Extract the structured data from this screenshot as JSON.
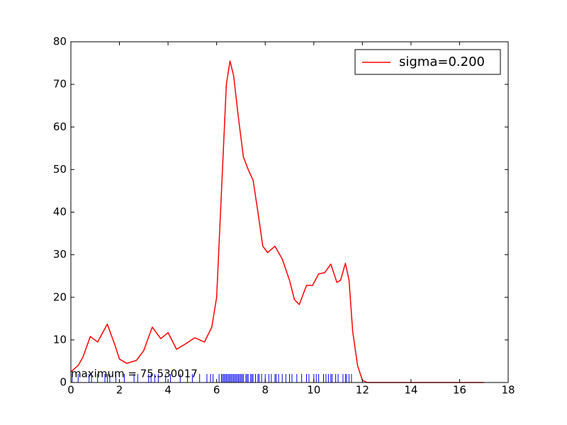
{
  "chart_data": {
    "type": "line",
    "annotation": "maximum = 75.530017",
    "xlim": [
      0,
      18
    ],
    "xticks": [
      0,
      2,
      4,
      6,
      8,
      10,
      12,
      14,
      16,
      18
    ],
    "ylim": [
      0,
      80
    ],
    "yticks": [
      0,
      10,
      20,
      30,
      40,
      50,
      60,
      70,
      80
    ],
    "legend": "upper right",
    "series": [
      {
        "name": "sigma=0.200",
        "color": "#ff0000",
        "x": [
          0,
          0.3,
          0.5,
          0.8,
          1.1,
          1.5,
          1.8,
          2.0,
          2.3,
          2.7,
          3.0,
          3.35,
          3.7,
          4.0,
          4.35,
          4.7,
          5.1,
          5.5,
          5.8,
          6.0,
          6.2,
          6.4,
          6.55,
          6.7,
          6.9,
          7.1,
          7.3,
          7.5,
          7.7,
          7.9,
          8.1,
          8.4,
          8.7,
          9.0,
          9.2,
          9.4,
          9.7,
          9.95,
          10.2,
          10.45,
          10.7,
          10.95,
          11.1,
          11.3,
          11.45,
          11.6,
          11.8,
          12.0,
          12.2,
          14,
          17
        ],
        "values": [
          2.5,
          4,
          6,
          10.8,
          9.5,
          13.7,
          9,
          5.5,
          4.5,
          5.2,
          7.5,
          13,
          10.3,
          11.7,
          7.8,
          9,
          10.5,
          9.5,
          13,
          20,
          45,
          70,
          75.5,
          72,
          62,
          53,
          50,
          47.5,
          40,
          32,
          30.5,
          32,
          29,
          24,
          19.5,
          18.3,
          22.8,
          22.8,
          25.5,
          25.8,
          27.8,
          23.5,
          24,
          28,
          24,
          12,
          4,
          0.5,
          0,
          0,
          0
        ]
      }
    ],
    "rug": {
      "color": "#0000ff",
      "height": 2,
      "x": [
        0.05,
        0.3,
        0.75,
        0.85,
        1.1,
        1.4,
        1.5,
        1.6,
        1.85,
        2.2,
        2.6,
        2.75,
        3.2,
        3.3,
        3.45,
        3.6,
        3.9,
        4.1,
        4.5,
        4.8,
        5.0,
        5.3,
        5.6,
        5.75,
        5.85,
        6.1,
        6.2,
        6.25,
        6.3,
        6.35,
        6.4,
        6.45,
        6.5,
        6.55,
        6.6,
        6.65,
        6.7,
        6.75,
        6.8,
        6.85,
        6.9,
        6.95,
        7.0,
        7.05,
        7.1,
        7.2,
        7.25,
        7.3,
        7.4,
        7.45,
        7.5,
        7.6,
        7.7,
        7.75,
        7.85,
        8.0,
        8.15,
        8.25,
        8.4,
        8.45,
        8.55,
        8.7,
        8.85,
        9.0,
        9.1,
        9.3,
        9.5,
        9.7,
        9.8,
        10.0,
        10.1,
        10.2,
        10.4,
        10.5,
        10.6,
        10.7,
        10.75,
        10.9,
        11.0,
        11.2,
        11.3,
        11.35,
        11.45,
        11.55
      ]
    }
  }
}
